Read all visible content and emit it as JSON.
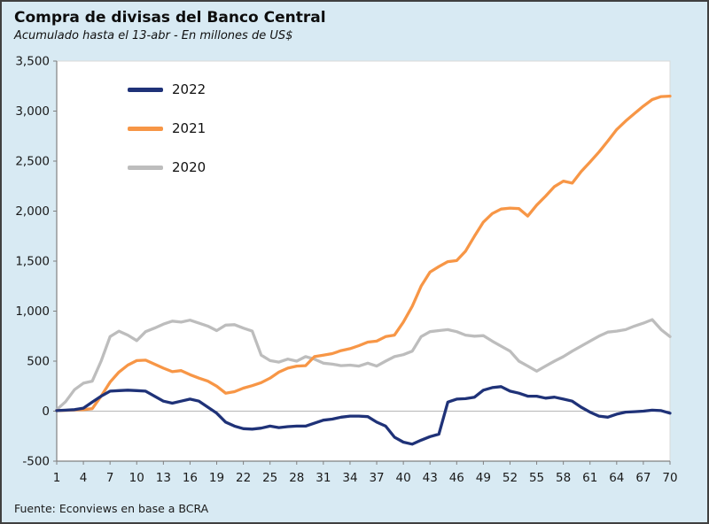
{
  "header": {
    "title": "Compra de divisas del Banco Central",
    "subtitle": "Acumulado hasta el 13-abr - En millones de US$"
  },
  "footer": {
    "source": "Fuente: Econviews en base a BCRA"
  },
  "colors": {
    "background": "#d8eaf3",
    "frame_border": "#404040",
    "axis": "#808080",
    "zero_line": "#b7b7b7",
    "plot_background": "#ffffff",
    "series_2022": "#1f3278",
    "series_2021": "#f79646",
    "series_2020": "#bdbdbd"
  },
  "chart_data": {
    "type": "line",
    "title": "Compra de divisas del Banco Central",
    "subtitle": "Acumulado hasta el 13-abr - En millones de US$",
    "xlabel": "",
    "ylabel": "",
    "grid": false,
    "legend_position": "top-left",
    "x_range": [
      1,
      70
    ],
    "x_ticks": [
      1,
      4,
      7,
      10,
      13,
      16,
      19,
      22,
      25,
      28,
      31,
      34,
      37,
      40,
      43,
      46,
      49,
      52,
      55,
      58,
      61,
      64,
      67,
      70
    ],
    "ylim": [
      -500,
      3500
    ],
    "y_tick_step": 500,
    "series": [
      {
        "name": "2022",
        "color": "#1f3278",
        "values": [
          5,
          10,
          15,
          30,
          90,
          150,
          200,
          205,
          210,
          205,
          200,
          150,
          100,
          80,
          100,
          120,
          100,
          40,
          -20,
          -110,
          -150,
          -175,
          -180,
          -170,
          -150,
          -165,
          -155,
          -150,
          -150,
          -120,
          -90,
          -80,
          -60,
          -50,
          -50,
          -55,
          -110,
          -150,
          -260,
          -310,
          -330,
          -290,
          -255,
          -230,
          90,
          120,
          125,
          140,
          210,
          235,
          245,
          200,
          180,
          150,
          150,
          130,
          140,
          120,
          100,
          40,
          -10,
          -50,
          -60,
          -30,
          -10,
          -5,
          0,
          10,
          5,
          -20
        ]
      },
      {
        "name": "2021",
        "color": "#f79646",
        "values": [
          5,
          8,
          12,
          15,
          25,
          150,
          290,
          390,
          460,
          505,
          510,
          470,
          430,
          395,
          405,
          365,
          330,
          300,
          250,
          180,
          195,
          230,
          255,
          285,
          330,
          390,
          430,
          450,
          455,
          545,
          560,
          575,
          605,
          625,
          655,
          690,
          700,
          745,
          760,
          890,
          1050,
          1250,
          1390,
          1445,
          1495,
          1505,
          1600,
          1750,
          1890,
          1975,
          2020,
          2030,
          2025,
          1950,
          2060,
          2150,
          2245,
          2300,
          2280,
          2395,
          2490,
          2590,
          2700,
          2815,
          2900,
          2975,
          3050,
          3115,
          3145,
          3150
        ]
      },
      {
        "name": "2020",
        "color": "#bdbdbd",
        "values": [
          15,
          95,
          215,
          280,
          300,
          500,
          745,
          800,
          760,
          705,
          795,
          830,
          870,
          900,
          890,
          910,
          880,
          850,
          805,
          860,
          865,
          830,
          800,
          560,
          505,
          490,
          520,
          500,
          545,
          520,
          480,
          470,
          455,
          460,
          450,
          480,
          450,
          500,
          545,
          565,
          600,
          745,
          795,
          805,
          815,
          795,
          760,
          750,
          755,
          700,
          650,
          600,
          500,
          450,
          400,
          450,
          500,
          545,
          600,
          650,
          700,
          750,
          790,
          800,
          815,
          850,
          880,
          915,
          815,
          745
        ]
      }
    ]
  }
}
